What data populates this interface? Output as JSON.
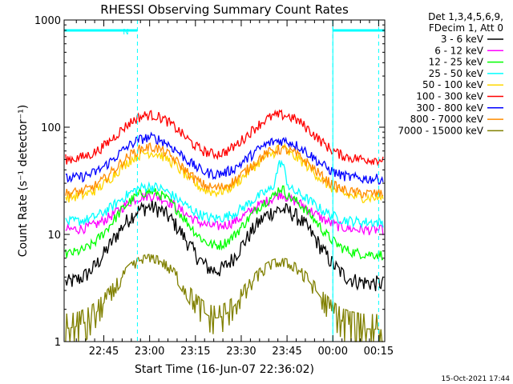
{
  "chart_data": {
    "type": "line",
    "title": "RHESSI Observing Summary Count Rates",
    "xlabel": "Start Time (16-Jun-07 22:36:02)",
    "ylabel": "Count Rate (s⁻¹ detector⁻¹)",
    "y_scale": "log",
    "ylim": [
      1,
      1000
    ],
    "y_ticks": [
      "1",
      "10",
      "100",
      "1000"
    ],
    "x_range_minutes": [
      -4.0,
      101.0
    ],
    "x_ticks": [
      {
        "label": "22:45",
        "minutes_after_start": 9
      },
      {
        "label": "23:00",
        "minutes_after_start": 24
      },
      {
        "label": "23:15",
        "minutes_after_start": 39
      },
      {
        "label": "23:30",
        "minutes_after_start": 54
      },
      {
        "label": "23:45",
        "minutes_after_start": 69
      },
      {
        "label": "00:00",
        "minutes_after_start": 84
      },
      {
        "label": "00:15",
        "minutes_after_start": 99
      }
    ],
    "legend_header": [
      "Det 1,3,4,5,6,9,",
      "FDecim 1, Att 0"
    ],
    "legend_placement": "right",
    "night_marker": "N",
    "series": [
      {
        "name": "3 - 6 keV",
        "color": "#000000",
        "base": 3.5,
        "peak1": 18,
        "peak2": 17,
        "flare": 0
      },
      {
        "name": "6 - 12 keV",
        "color": "#ff00ff",
        "base": 11,
        "peak1": 23,
        "peak2": 22,
        "flare": 2
      },
      {
        "name": "12 - 25 keV",
        "color": "#00ff00",
        "base": 6.5,
        "peak1": 25,
        "peak2": 23,
        "flare": 4
      },
      {
        "name": "25 - 50 keV",
        "color": "#00ffff",
        "base": 13,
        "peak1": 28,
        "peak2": 27,
        "flare": 20
      },
      {
        "name": "50 - 100 keV",
        "color": "#ffd700",
        "base": 22,
        "peak1": 58,
        "peak2": 58,
        "flare": 10
      },
      {
        "name": "100 - 300 keV",
        "color": "#ff0000",
        "base": 50,
        "peak1": 130,
        "peak2": 130,
        "flare": 0
      },
      {
        "name": "300 - 800 keV",
        "color": "#0000ff",
        "base": 33,
        "peak1": 80,
        "peak2": 75,
        "flare": 0
      },
      {
        "name": "800 - 7000 keV",
        "color": "#ff8c00",
        "base": 24,
        "peak1": 65,
        "peak2": 62,
        "flare": 0
      },
      {
        "name": "7000 - 15000 keV",
        "color": "#808000",
        "base": 1.3,
        "peak1": 6,
        "peak2": 5.5,
        "flare": 0
      }
    ],
    "peak_times_minutes": [
      24,
      67
    ],
    "saa_intervals_minutes": [
      [
        -4,
        20
      ],
      [
        84,
        101
      ]
    ],
    "saa_level": 800,
    "vertical_markers_minutes": [
      20,
      84,
      99
    ],
    "timestamp": "15-Oct-2021 17:44"
  }
}
